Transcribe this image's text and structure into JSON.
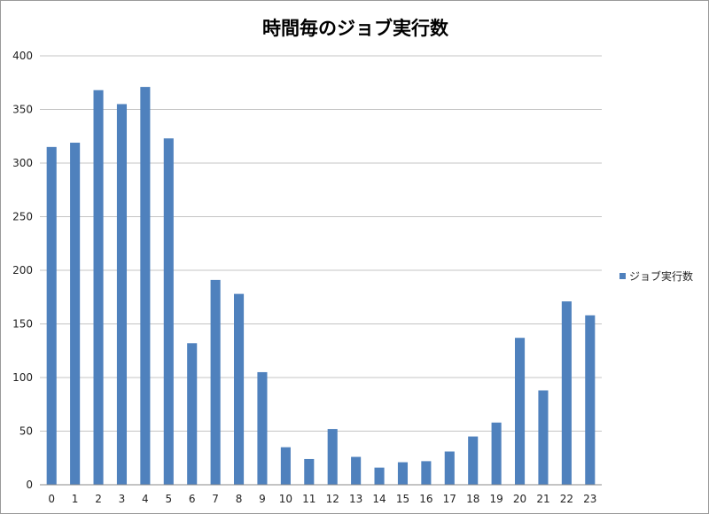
{
  "chart_data": {
    "type": "bar",
    "title": "時間毎のジョブ実行数",
    "xlabel": "",
    "ylabel": "",
    "categories": [
      "0",
      "1",
      "2",
      "3",
      "4",
      "5",
      "6",
      "7",
      "8",
      "9",
      "10",
      "11",
      "12",
      "13",
      "14",
      "15",
      "16",
      "17",
      "18",
      "19",
      "20",
      "21",
      "22",
      "23"
    ],
    "series": [
      {
        "name": "ジョブ実行数",
        "values": [
          315,
          319,
          368,
          355,
          371,
          323,
          132,
          191,
          178,
          105,
          35,
          24,
          52,
          26,
          16,
          21,
          22,
          31,
          45,
          58,
          137,
          88,
          171,
          158
        ],
        "color": "#4f81bd"
      }
    ],
    "ylim": [
      0,
      400
    ],
    "yticks": [
      0,
      50,
      100,
      150,
      200,
      250,
      300,
      350,
      400
    ],
    "grid": true,
    "legend": "right"
  }
}
